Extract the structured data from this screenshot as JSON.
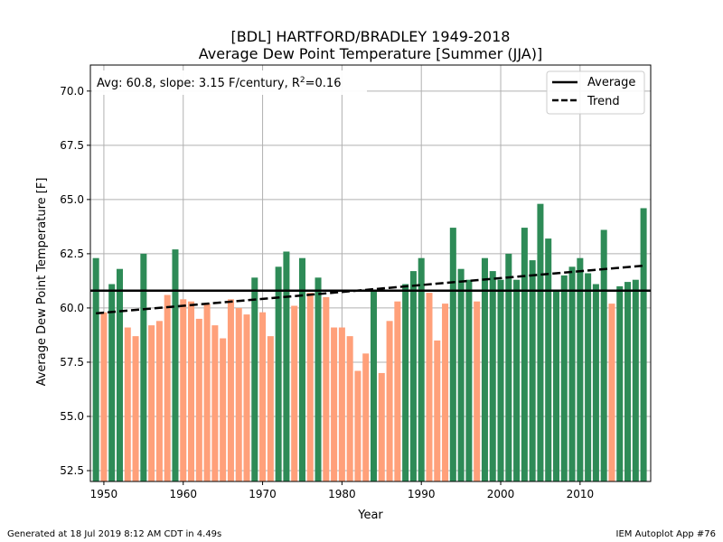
{
  "chart_data": {
    "type": "bar",
    "title_line1": "[BDL] HARTFORD/BRADLEY 1949-2018",
    "title_line2": "Average Dew Point Temperature [Summer (JJA)]",
    "xlabel": "Year",
    "ylabel": "Average Dew Point Temperature [F]",
    "xlim": [
      1948.3,
      2018.9
    ],
    "ylim": [
      52.0,
      71.2
    ],
    "x_ticks": [
      1950,
      1960,
      1970,
      1980,
      1990,
      2000,
      2010
    ],
    "y_ticks": [
      52.5,
      55.0,
      57.5,
      60.0,
      62.5,
      65.0,
      67.5,
      70.0
    ],
    "y_tick_labels": [
      "52.5",
      "55.0",
      "57.5",
      "60.0",
      "62.5",
      "65.0",
      "67.5",
      "70.0"
    ],
    "grid": true,
    "average": 60.8,
    "trend": {
      "start": [
        1949,
        59.75
      ],
      "end": [
        2018,
        61.95
      ]
    },
    "annotation": {
      "text": "Avg: 60.8, slope: 3.15 F/century, R",
      "sup": "2",
      "text_after": "=0.16"
    },
    "legend": {
      "placement": "top-right",
      "entries": [
        "Average",
        "Trend"
      ]
    },
    "colors": {
      "above": "#2e8b57",
      "below": "#ffa07a",
      "average": "#000000",
      "trend": "#000000"
    },
    "years": [
      1949,
      1950,
      1951,
      1952,
      1953,
      1954,
      1955,
      1956,
      1957,
      1958,
      1959,
      1960,
      1961,
      1962,
      1963,
      1964,
      1965,
      1966,
      1967,
      1968,
      1969,
      1970,
      1971,
      1972,
      1973,
      1974,
      1975,
      1976,
      1977,
      1978,
      1979,
      1980,
      1981,
      1982,
      1983,
      1984,
      1985,
      1986,
      1987,
      1988,
      1989,
      1990,
      1991,
      1992,
      1993,
      1994,
      1995,
      1996,
      1997,
      1998,
      1999,
      2000,
      2001,
      2002,
      2003,
      2004,
      2005,
      2006,
      2007,
      2008,
      2009,
      2010,
      2011,
      2012,
      2013,
      2014,
      2015,
      2016,
      2017,
      2018
    ],
    "values": [
      62.3,
      59.8,
      61.1,
      61.8,
      59.1,
      58.7,
      62.5,
      59.2,
      59.4,
      60.6,
      62.7,
      60.4,
      60.3,
      59.5,
      60.2,
      59.2,
      58.6,
      60.4,
      60.0,
      59.7,
      61.4,
      59.8,
      58.7,
      61.9,
      62.6,
      60.1,
      62.3,
      60.7,
      61.4,
      60.5,
      59.1,
      59.1,
      58.7,
      57.1,
      57.9,
      60.8,
      57.0,
      59.4,
      60.3,
      61.1,
      61.7,
      62.3,
      60.7,
      58.5,
      60.2,
      63.7,
      61.8,
      61.3,
      60.3,
      62.3,
      61.7,
      61.3,
      62.5,
      61.3,
      63.7,
      62.2,
      64.8,
      63.2,
      60.8,
      61.5,
      61.9,
      62.3,
      61.6,
      61.1,
      63.6,
      60.2,
      61.0,
      61.2,
      61.3,
      64.6
    ]
  },
  "footer": {
    "left": "Generated at 18 Jul 2019 8:12 AM CDT in 4.49s",
    "right": "IEM Autoplot App #76"
  }
}
